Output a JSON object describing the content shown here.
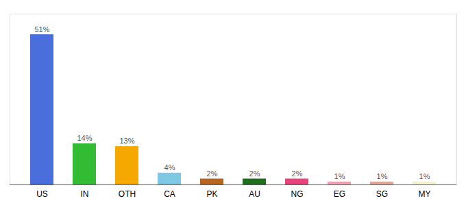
{
  "chart_data": {
    "type": "bar",
    "categories": [
      "US",
      "IN",
      "OTH",
      "CA",
      "PK",
      "AU",
      "NG",
      "EG",
      "SG",
      "MY"
    ],
    "values": [
      51,
      14,
      13,
      4,
      2,
      2,
      2,
      1,
      1,
      1
    ],
    "value_labels": [
      "51%",
      "14%",
      "13%",
      "4%",
      "2%",
      "2%",
      "2%",
      "1%",
      "1%",
      "1%"
    ],
    "colors": [
      "#4a6fdc",
      "#33bb33",
      "#f5a800",
      "#7ec8e3",
      "#b5651d",
      "#1e6e1e",
      "#e8427a",
      "#f0a0b0",
      "#e0a898",
      "#f5f0d0"
    ],
    "ylim": [
      0,
      58
    ],
    "data_labels": true,
    "tick_labels": "x",
    "grid": false
  }
}
